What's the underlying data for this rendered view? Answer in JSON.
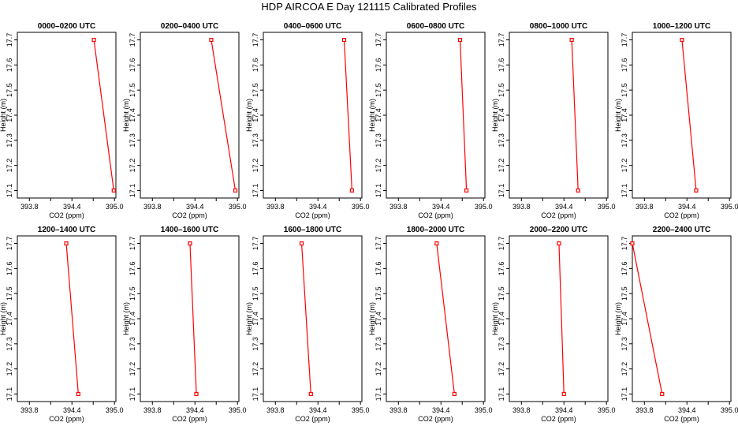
{
  "title": "HDP AIRCOA E  Day 121115  Calibrated Profiles",
  "chart_data": [
    {
      "type": "line",
      "title": "0000–0200 UTC",
      "xlabel": "CO2 (ppm)",
      "ylabel": "Height (m)",
      "x_ticks": [
        "393.8",
        "394.4",
        "395.0"
      ],
      "y_ticks": [
        "17.1",
        "17.2",
        "17.3",
        "17.4",
        "17.5",
        "17.6",
        "17.7"
      ],
      "xlim": [
        393.63,
        395.02
      ],
      "ylim": [
        17.07,
        17.73
      ],
      "series": [
        {
          "x": [
            394.99,
            394.71
          ],
          "y": [
            17.1,
            17.7
          ]
        }
      ]
    },
    {
      "type": "line",
      "title": "0200–0400 UTC",
      "xlabel": "CO2 (ppm)",
      "ylabel": "Height (m)",
      "x_ticks": [
        "393.8",
        "394.4",
        "395.0"
      ],
      "y_ticks": [
        "17.1",
        "17.2",
        "17.3",
        "17.4",
        "17.5",
        "17.6",
        "17.7"
      ],
      "xlim": [
        393.63,
        395.02
      ],
      "ylim": [
        17.07,
        17.73
      ],
      "series": [
        {
          "x": [
            394.97,
            394.63
          ],
          "y": [
            17.1,
            17.7
          ]
        }
      ]
    },
    {
      "type": "line",
      "title": "0400–0600 UTC",
      "xlabel": "CO2 (ppm)",
      "ylabel": "Height (m)",
      "x_ticks": [
        "393.8",
        "394.4",
        "395.0"
      ],
      "y_ticks": [
        "17.1",
        "17.2",
        "17.3",
        "17.4",
        "17.5",
        "17.6",
        "17.7"
      ],
      "xlim": [
        393.63,
        395.02
      ],
      "ylim": [
        17.07,
        17.73
      ],
      "series": [
        {
          "x": [
            394.88,
            394.77
          ],
          "y": [
            17.1,
            17.7
          ]
        }
      ]
    },
    {
      "type": "line",
      "title": "0600–0800 UTC",
      "xlabel": "CO2 (ppm)",
      "ylabel": "Height (m)",
      "x_ticks": [
        "393.8",
        "394.4",
        "395.0"
      ],
      "y_ticks": [
        "17.1",
        "17.2",
        "17.3",
        "17.4",
        "17.5",
        "17.6",
        "17.7"
      ],
      "xlim": [
        393.63,
        395.02
      ],
      "ylim": [
        17.07,
        17.73
      ],
      "series": [
        {
          "x": [
            394.76,
            394.67
          ],
          "y": [
            17.1,
            17.7
          ]
        }
      ]
    },
    {
      "type": "line",
      "title": "0800–1000 UTC",
      "xlabel": "CO2 (ppm)",
      "ylabel": "Height (m)",
      "x_ticks": [
        "393.8",
        "394.4",
        "395.0"
      ],
      "y_ticks": [
        "17.1",
        "17.2",
        "17.3",
        "17.4",
        "17.5",
        "17.6",
        "17.7"
      ],
      "xlim": [
        393.63,
        395.02
      ],
      "ylim": [
        17.07,
        17.73
      ],
      "series": [
        {
          "x": [
            394.6,
            394.51
          ],
          "y": [
            17.1,
            17.7
          ]
        }
      ]
    },
    {
      "type": "line",
      "title": "1000–1200 UTC",
      "xlabel": "CO2 (ppm)",
      "ylabel": "Height (m)",
      "x_ticks": [
        "393.8",
        "394.4",
        "395.0"
      ],
      "y_ticks": [
        "17.1",
        "17.2",
        "17.3",
        "17.4",
        "17.5",
        "17.6",
        "17.7"
      ],
      "xlim": [
        393.63,
        395.02
      ],
      "ylim": [
        17.07,
        17.73
      ],
      "series": [
        {
          "x": [
            394.53,
            394.33
          ],
          "y": [
            17.1,
            17.7
          ]
        }
      ]
    },
    {
      "type": "line",
      "title": "1200–1400 UTC",
      "xlabel": "CO2 (ppm)",
      "ylabel": "Height (m)",
      "x_ticks": [
        "393.8",
        "394.4",
        "395.0"
      ],
      "y_ticks": [
        "17.1",
        "17.2",
        "17.3",
        "17.4",
        "17.5",
        "17.6",
        "17.7"
      ],
      "xlim": [
        393.63,
        395.02
      ],
      "ylim": [
        17.07,
        17.73
      ],
      "series": [
        {
          "x": [
            394.49,
            394.32
          ],
          "y": [
            17.1,
            17.7
          ]
        }
      ]
    },
    {
      "type": "line",
      "title": "1400–1600 UTC",
      "xlabel": "CO2 (ppm)",
      "ylabel": "Height (m)",
      "x_ticks": [
        "393.8",
        "394.4",
        "395.0"
      ],
      "y_ticks": [
        "17.1",
        "17.2",
        "17.3",
        "17.4",
        "17.5",
        "17.6",
        "17.7"
      ],
      "xlim": [
        393.63,
        395.02
      ],
      "ylim": [
        17.07,
        17.73
      ],
      "series": [
        {
          "x": [
            394.42,
            394.33
          ],
          "y": [
            17.1,
            17.7
          ]
        }
      ]
    },
    {
      "type": "line",
      "title": "1600–1800 UTC",
      "xlabel": "CO2 (ppm)",
      "ylabel": "Height (m)",
      "x_ticks": [
        "393.8",
        "394.4",
        "395.0"
      ],
      "y_ticks": [
        "17.1",
        "17.2",
        "17.3",
        "17.4",
        "17.5",
        "17.6",
        "17.7"
      ],
      "xlim": [
        393.63,
        395.02
      ],
      "ylim": [
        17.07,
        17.73
      ],
      "series": [
        {
          "x": [
            394.3,
            394.17
          ],
          "y": [
            17.1,
            17.7
          ]
        }
      ]
    },
    {
      "type": "line",
      "title": "1800–2000 UTC",
      "xlabel": "CO2 (ppm)",
      "ylabel": "Height (m)",
      "x_ticks": [
        "393.8",
        "394.4",
        "395.0"
      ],
      "y_ticks": [
        "17.1",
        "17.2",
        "17.3",
        "17.4",
        "17.5",
        "17.6",
        "17.7"
      ],
      "xlim": [
        393.63,
        395.02
      ],
      "ylim": [
        17.07,
        17.73
      ],
      "series": [
        {
          "x": [
            394.59,
            394.34
          ],
          "y": [
            17.1,
            17.7
          ]
        }
      ]
    },
    {
      "type": "line",
      "title": "2000–2200 UTC",
      "xlabel": "CO2 (ppm)",
      "ylabel": "Height (m)",
      "x_ticks": [
        "393.8",
        "394.4",
        "395.0"
      ],
      "y_ticks": [
        "17.1",
        "17.2",
        "17.3",
        "17.4",
        "17.5",
        "17.6",
        "17.7"
      ],
      "xlim": [
        393.63,
        395.02
      ],
      "ylim": [
        17.07,
        17.73
      ],
      "series": [
        {
          "x": [
            394.4,
            394.33
          ],
          "y": [
            17.1,
            17.7
          ]
        }
      ]
    },
    {
      "type": "line",
      "title": "2200–2400 UTC",
      "xlabel": "CO2 (ppm)",
      "ylabel": "Height (m)",
      "x_ticks": [
        "393.8",
        "394.4",
        "395.0"
      ],
      "y_ticks": [
        "17.1",
        "17.2",
        "17.3",
        "17.4",
        "17.5",
        "17.6",
        "17.7"
      ],
      "xlim": [
        393.63,
        395.02
      ],
      "ylim": [
        17.07,
        17.73
      ],
      "series": [
        {
          "x": [
            394.05,
            393.63
          ],
          "y": [
            17.1,
            17.7
          ]
        }
      ]
    }
  ]
}
